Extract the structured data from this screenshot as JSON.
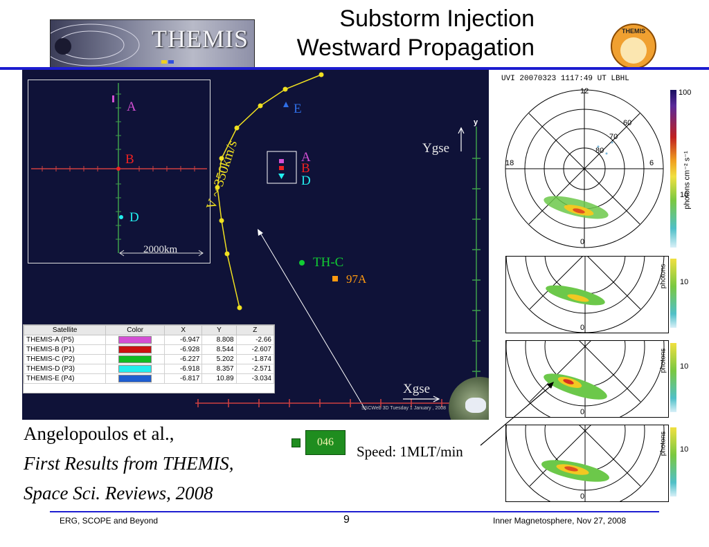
{
  "header": {
    "logo_text": "THEMIS",
    "title_line1": "Substorm Injection",
    "title_line2": "Westward Propagation",
    "seal_text": "THEMIS"
  },
  "plot": {
    "inset": {
      "label_a": "A",
      "label_b": "B",
      "label_d": "D",
      "scale": "2000km"
    },
    "labels": {
      "e": "E",
      "a": "A",
      "b": "B",
      "d": "D",
      "thc": "TH-C",
      "97a": "97A",
      "ygse": "Ygse",
      "xgse": "Xgse",
      "yaxis": "y",
      "speed_note": "V ~ 350km/s",
      "credit": "SSCWeb 3D  Tuesday 1 January , 2008"
    },
    "table": {
      "headers": [
        "Satellite",
        "Color",
        "X",
        "Y",
        "Z"
      ],
      "rows": [
        {
          "name": "THEMIS-A (P5)",
          "color": "#d34fd3",
          "x": "-6.947",
          "y": "8.808",
          "z": "-2.66"
        },
        {
          "name": "THEMIS-B (P1)",
          "color": "#cc1111",
          "x": "-6.928",
          "y": "8.544",
          "z": "-2.607"
        },
        {
          "name": "THEMIS-C (P2)",
          "color": "#11bb22",
          "x": "-6.227",
          "y": "5.202",
          "z": "-1.874"
        },
        {
          "name": "THEMIS-D (P3)",
          "color": "#22eeee",
          "x": "-6.918",
          "y": "8.357",
          "z": "-2.571"
        },
        {
          "name": "THEMIS-E (P4)",
          "color": "#1e5ed0",
          "x": "-6.817",
          "y": "10.89",
          "z": "-3.034"
        }
      ]
    }
  },
  "uvi": {
    "header": "UVI 20070323 1117:49 UT LBHL",
    "lbl_12": "12",
    "lbl_18": "18",
    "lbl_6": "6",
    "lbl_0": "0",
    "lbl_60": "60",
    "lbl_70": "70",
    "lbl_80": "80",
    "cb_100": "100",
    "cb_10": "10",
    "cb_unit": "photons cm⁻² s⁻¹",
    "cb_unit_short": "photons"
  },
  "citation": {
    "line1": "Angelopoulos et al.,",
    "line2": "First Results from THEMIS,",
    "line3": "Space Sci. Reviews, 2008"
  },
  "badge": "046",
  "speed": "Speed: 1MLT/min",
  "footer": {
    "left": "ERG, SCOPE and Beyond",
    "page": "9",
    "right": "Inner Magnetosphere, Nov 27, 2008"
  }
}
